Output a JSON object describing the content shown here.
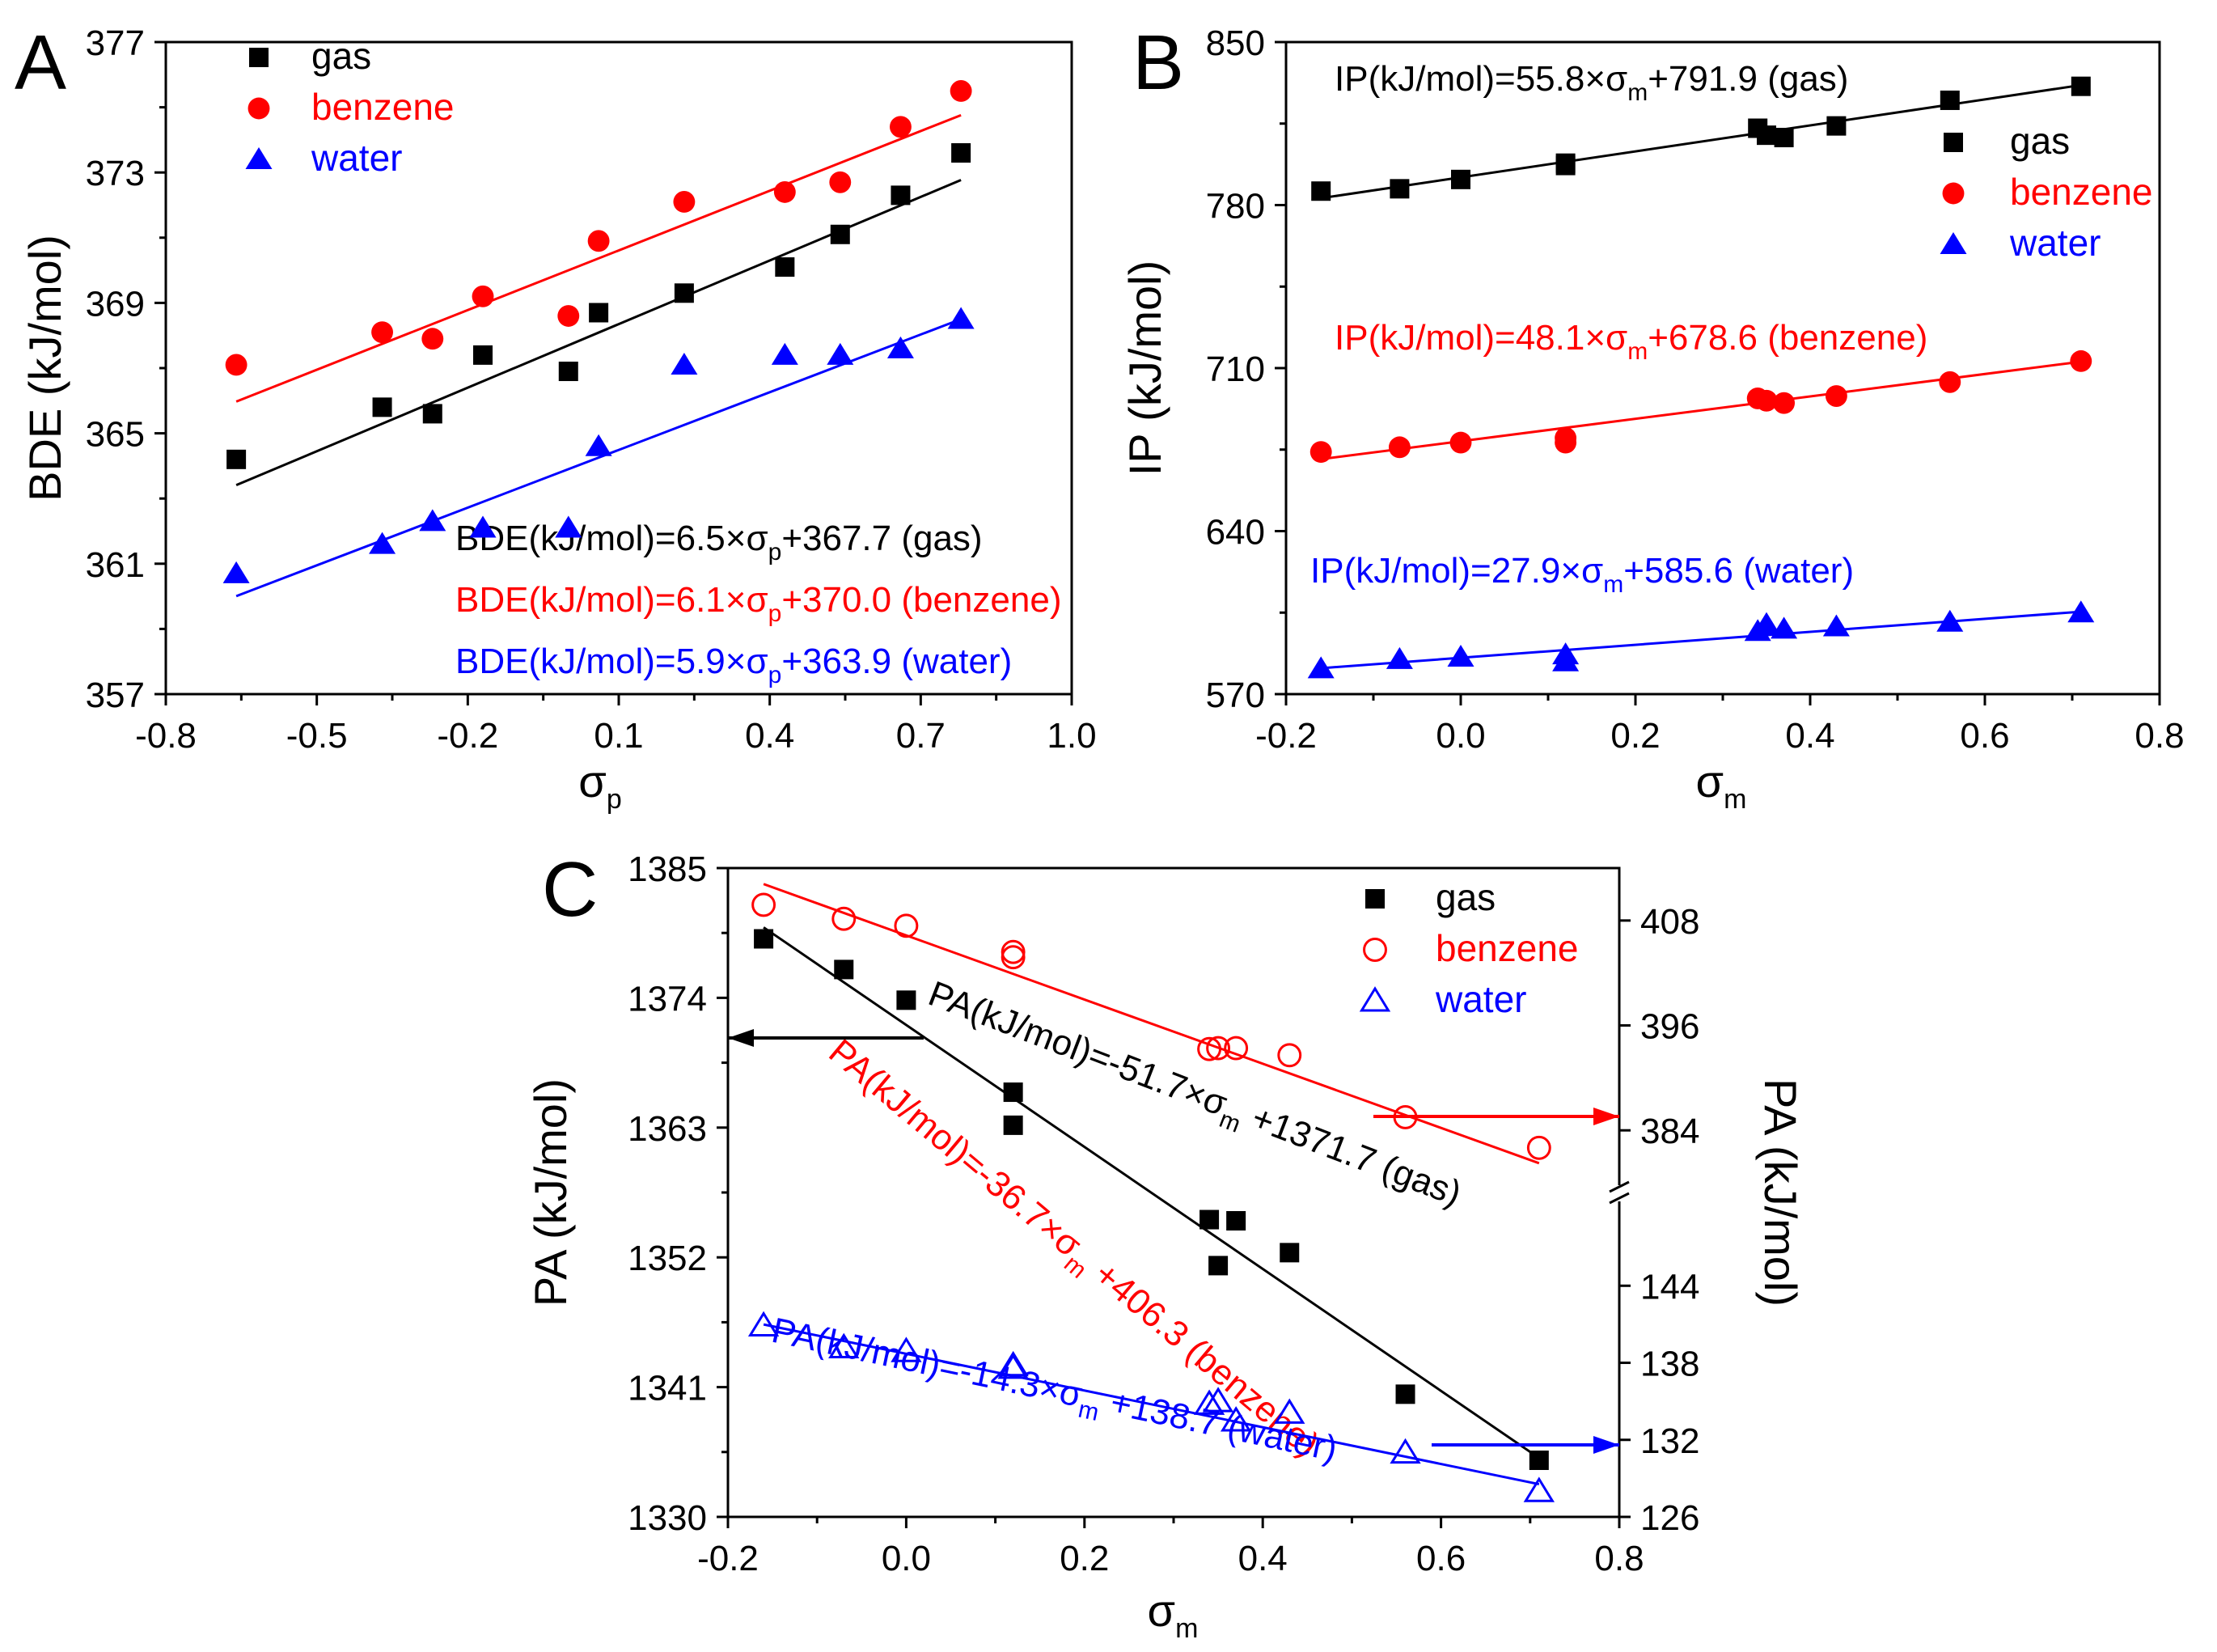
{
  "colors": {
    "gas": "#000000",
    "benzene": "#ff0000",
    "water": "#0000ff"
  },
  "chart_data": [
    {
      "panel": "A",
      "type": "scatter",
      "xlabel": "σ",
      "xlabel_sub": "p",
      "ylabel": "BDE (kJ/mol)",
      "xlim": [
        -0.8,
        1.0
      ],
      "ylim": [
        357,
        377
      ],
      "xticks": [
        -0.8,
        -0.5,
        -0.2,
        0.1,
        0.4,
        0.7,
        1.0
      ],
      "xtick_labels": [
        "-0.8",
        "-0.5",
        "-0.2",
        "0.1",
        "0.4",
        "0.7",
        "1.0"
      ],
      "yticks": [
        357,
        361,
        365,
        369,
        373,
        377
      ],
      "ytick_labels": [
        "357",
        "361",
        "365",
        "369",
        "373",
        "377"
      ],
      "legend": {
        "position": "top-left",
        "entries": [
          "gas",
          "benzene",
          "water"
        ]
      },
      "series": [
        {
          "name": "gas",
          "marker": "square",
          "filled": true,
          "x": [
            -0.66,
            -0.37,
            -0.27,
            -0.17,
            0.0,
            0.06,
            0.23,
            0.43,
            0.54,
            0.66,
            0.78
          ],
          "y": [
            364.2,
            365.8,
            365.6,
            367.4,
            366.9,
            368.7,
            369.3,
            370.1,
            371.1,
            372.3,
            373.6
          ],
          "fit": {
            "slope": 6.5,
            "intercept": 367.7,
            "x_range": [
              -0.66,
              0.78
            ]
          },
          "equation": {
            "prefix": "BDE(kJ/mol)=6.5×σ",
            "sub": "p",
            "suffix": "+367.7 (gas)"
          }
        },
        {
          "name": "benzene",
          "marker": "circle",
          "filled": true,
          "x": [
            -0.66,
            -0.37,
            -0.27,
            -0.17,
            0.0,
            0.06,
            0.23,
            0.43,
            0.54,
            0.66,
            0.78
          ],
          "y": [
            367.1,
            368.1,
            367.9,
            369.2,
            368.6,
            370.9,
            372.1,
            372.4,
            372.7,
            374.4,
            375.5
          ],
          "fit": {
            "slope": 6.1,
            "intercept": 370.0,
            "x_range": [
              -0.66,
              0.78
            ]
          },
          "equation": {
            "prefix": "BDE(kJ/mol)=6.1×σ",
            "sub": "p",
            "suffix": "+370.0 (benzene)"
          }
        },
        {
          "name": "water",
          "marker": "triangle",
          "filled": true,
          "x": [
            -0.66,
            -0.37,
            -0.27,
            -0.17,
            0.0,
            0.06,
            0.23,
            0.43,
            0.54,
            0.66,
            0.78
          ],
          "y": [
            360.7,
            361.6,
            362.3,
            362.1,
            362.1,
            364.6,
            367.1,
            367.4,
            367.4,
            367.6,
            368.5
          ],
          "fit": {
            "slope": 5.9,
            "intercept": 363.9,
            "x_range": [
              -0.66,
              0.78
            ]
          },
          "equation": {
            "prefix": "BDE(kJ/mol)=5.9×σ",
            "sub": "p",
            "suffix": "+363.9 (water)"
          }
        }
      ]
    },
    {
      "panel": "B",
      "type": "scatter",
      "xlabel": "σ",
      "xlabel_sub": "m",
      "ylabel": "IP (kJ/mol)",
      "xlim": [
        -0.2,
        0.8
      ],
      "ylim": [
        570,
        850
      ],
      "xticks": [
        -0.2,
        0.0,
        0.2,
        0.4,
        0.6,
        0.8
      ],
      "xtick_labels": [
        "-0.2",
        "0.0",
        "0.2",
        "0.4",
        "0.6",
        "0.8"
      ],
      "yticks": [
        570,
        640,
        710,
        780,
        850
      ],
      "ytick_labels": [
        "570",
        "640",
        "710",
        "780",
        "850"
      ],
      "legend": {
        "position": "top-right",
        "entries": [
          "gas",
          "benzene",
          "water"
        ]
      },
      "series": [
        {
          "name": "gas",
          "marker": "square",
          "filled": true,
          "x": [
            -0.16,
            -0.07,
            0.0,
            0.12,
            0.12,
            0.34,
            0.35,
            0.37,
            0.43,
            0.56,
            0.71
          ],
          "y": [
            786,
            787,
            791,
            797,
            798,
            813,
            810,
            809,
            814,
            825,
            831
          ],
          "fit": {
            "slope": 55.8,
            "intercept": 791.9,
            "x_range": [
              -0.16,
              0.71
            ]
          },
          "equation": {
            "prefix": "IP(kJ/mol)=55.8×σ",
            "sub": "m",
            "suffix": "+791.9 (gas)"
          }
        },
        {
          "name": "benzene",
          "marker": "circle",
          "filled": true,
          "x": [
            -0.16,
            -0.07,
            0.0,
            0.12,
            0.12,
            0.34,
            0.35,
            0.37,
            0.43,
            0.56,
            0.71
          ],
          "y": [
            674,
            676,
            678,
            678,
            680,
            697,
            696,
            695,
            698,
            704,
            713
          ],
          "fit": {
            "slope": 48.1,
            "intercept": 678.6,
            "x_range": [
              -0.16,
              0.71
            ]
          },
          "equation": {
            "prefix": "IP(kJ/mol)=48.1×σ",
            "sub": "m",
            "suffix": "+678.6 (benzene)"
          }
        },
        {
          "name": "water",
          "marker": "triangle",
          "filled": true,
          "x": [
            -0.16,
            -0.07,
            0.0,
            0.12,
            0.12,
            0.34,
            0.35,
            0.37,
            0.43,
            0.56,
            0.71
          ],
          "y": [
            581,
            585,
            586,
            584,
            587,
            597,
            600,
            598,
            599,
            601,
            605
          ],
          "fit": {
            "slope": 27.9,
            "intercept": 585.6,
            "x_range": [
              -0.16,
              0.71
            ]
          },
          "equation": {
            "prefix": "IP(kJ/mol)=27.9×σ",
            "sub": "m",
            "suffix": "+585.6 (water)"
          }
        }
      ]
    },
    {
      "panel": "C",
      "type": "scatter",
      "xlabel": "σ",
      "xlabel_sub": "m",
      "ylabel": "PA (kJ/mol)",
      "ylabel_right": "PA (kJ/mol)",
      "xlim": [
        -0.2,
        0.8
      ],
      "ylim": [
        1330,
        1385
      ],
      "xticks": [
        -0.2,
        0.0,
        0.2,
        0.4,
        0.6,
        0.8
      ],
      "xtick_labels": [
        "-0.2",
        "0.0",
        "0.2",
        "0.4",
        "0.6",
        "0.8"
      ],
      "yticks": [
        1330,
        1341,
        1352,
        1363,
        1374,
        1385
      ],
      "ytick_labels": [
        "1330",
        "1341",
        "1352",
        "1363",
        "1374",
        "1385"
      ],
      "right_axis_upper": {
        "ylim": [
          376.8,
          414
        ],
        "ticks": [
          384,
          396,
          408
        ],
        "labels": [
          "384",
          "396",
          "408"
        ]
      },
      "right_axis_lower": {
        "ylim": [
          126,
          151.2
        ],
        "ticks": [
          126,
          132,
          138,
          144
        ],
        "labels": [
          "126",
          "132",
          "138",
          "144"
        ]
      },
      "legend": {
        "position": "top-right",
        "entries": [
          "gas",
          "benzene",
          "water"
        ]
      },
      "series": [
        {
          "name": "gas",
          "marker": "square",
          "filled": true,
          "axis": "left",
          "x": [
            -0.16,
            -0.07,
            0.0,
            0.12,
            0.12,
            0.34,
            0.35,
            0.37,
            0.43,
            0.56,
            0.71
          ],
          "y": [
            1379,
            1376.4,
            1373.8,
            1366,
            1363.2,
            1355.2,
            1351.3,
            1355.1,
            1352.4,
            1340.4,
            1334.8
          ],
          "fit": {
            "slope": -51.7,
            "intercept": 1371.7,
            "x_range": [
              -0.16,
              0.71
            ]
          },
          "equation": {
            "prefix": "PA(kJ/mol)=-51.7×σ",
            "sub": "m",
            "suffix": " +1371.7 (gas)"
          }
        },
        {
          "name": "benzene",
          "marker": "circle",
          "filled": false,
          "axis": "right-upper",
          "x": [
            -0.16,
            -0.07,
            0.0,
            0.12,
            0.12,
            0.34,
            0.35,
            0.37,
            0.43,
            0.56,
            0.71
          ],
          "y": [
            409.8,
            408.2,
            407.4,
            404.4,
            403.8,
            393.3,
            393.4,
            393.4,
            392.6,
            385.5,
            382
          ],
          "fit": {
            "slope": -36.7,
            "intercept": 406.3,
            "x_range": [
              -0.16,
              0.71
            ]
          },
          "equation": {
            "prefix": "PA(kJ/mol)=-36.7×σ",
            "sub": "m",
            "suffix": " +406.3 (benzene)"
          }
        },
        {
          "name": "water",
          "marker": "triangle",
          "filled": false,
          "axis": "right-lower",
          "x": [
            -0.16,
            -0.07,
            0.0,
            0.12,
            0.12,
            0.34,
            0.35,
            0.37,
            0.43,
            0.56,
            0.71
          ],
          "y": [
            140.9,
            139.2,
            138.9,
            137.8,
            137.6,
            134.8,
            135.0,
            133.5,
            134.1,
            131.0,
            128.0
          ],
          "fit": {
            "slope": -14.3,
            "intercept": 138.7,
            "x_range": [
              -0.16,
              0.71
            ]
          },
          "equation": {
            "prefix": "PA(kJ/mol)=-14.3×σ",
            "sub": "m",
            "suffix": " +138.7 (water)"
          }
        }
      ]
    }
  ]
}
